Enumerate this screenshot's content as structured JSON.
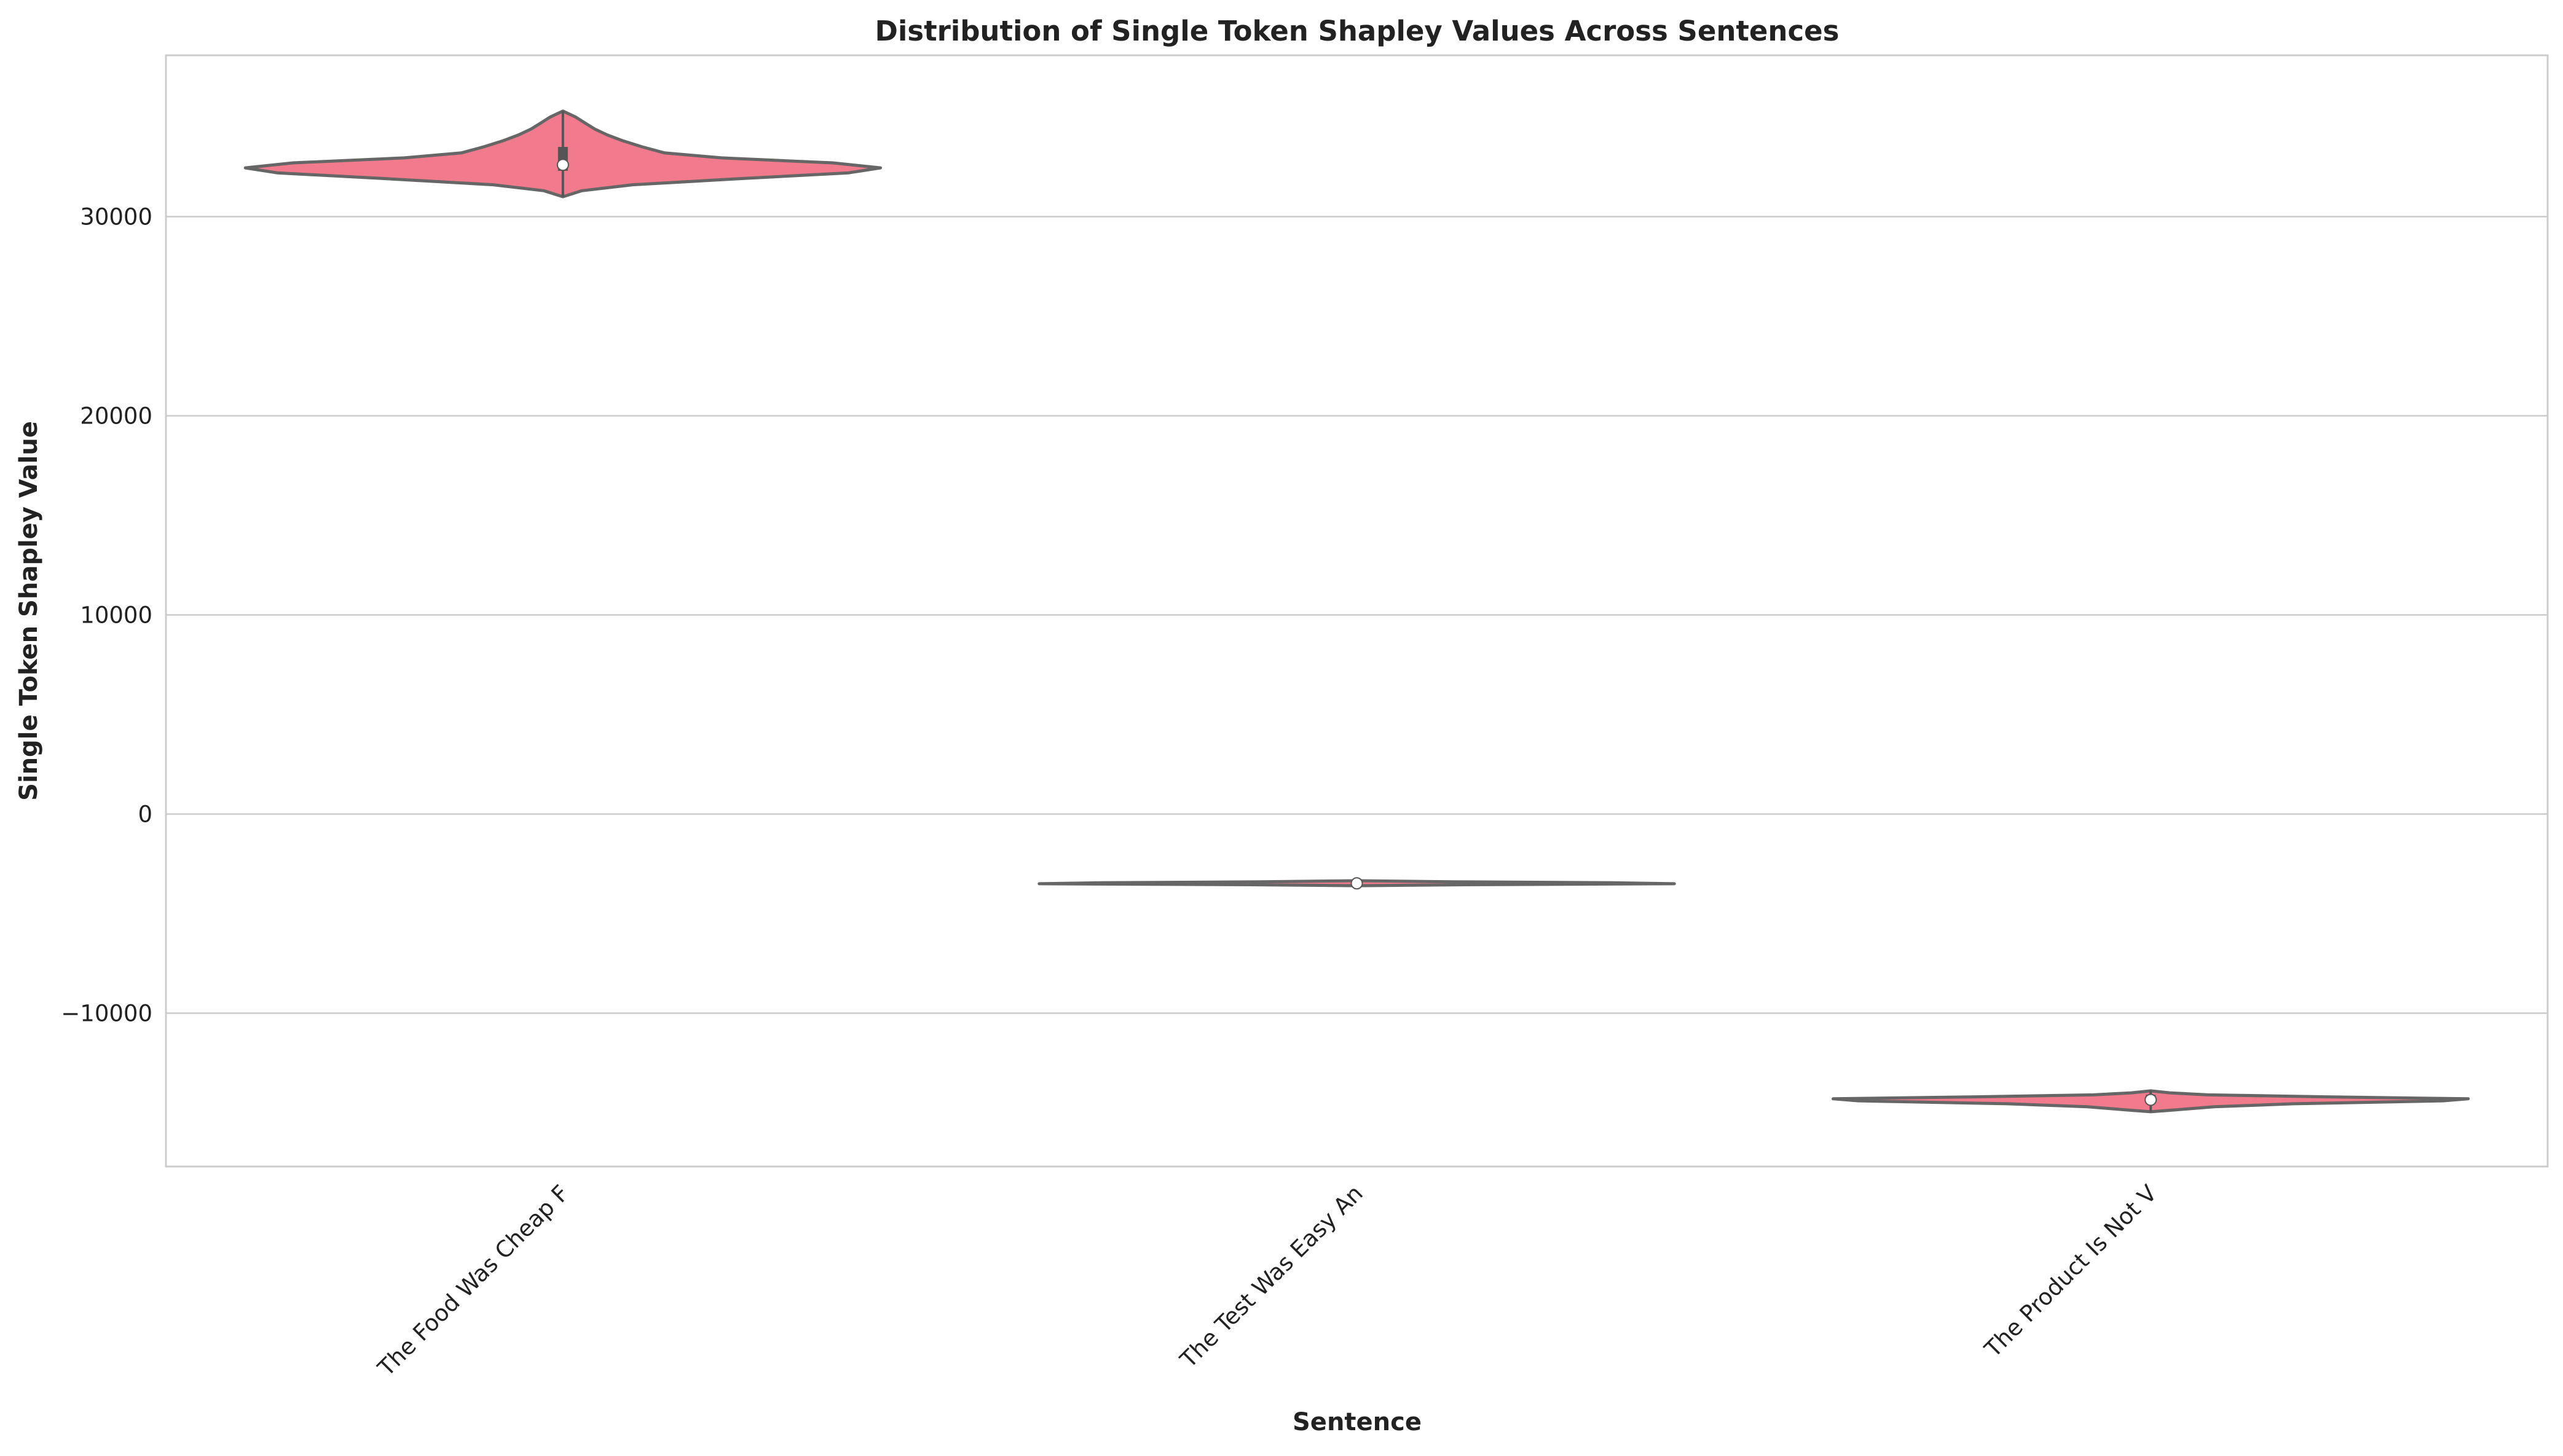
{
  "chart_data": {
    "type": "violin",
    "title": "Distribution of Single Token Shapley Values Across Sentences",
    "xlabel": "Sentence",
    "ylabel": "Single Token Shapley Value",
    "ylim": [
      -17700,
      38100
    ],
    "y_ticks": [
      30000,
      20000,
      10000,
      0,
      -10000
    ],
    "y_tick_labels": [
      "30000",
      "20000",
      "10000",
      "0",
      "−10000"
    ],
    "categories": [
      "The Food Was Cheap F",
      "The Test Was Easy An",
      "The Product Is Not V"
    ],
    "grid": true,
    "colors": {
      "violin_fill": "#f27a8d",
      "violin_edge": "#666666",
      "box": "#555555",
      "median": "#ffffff",
      "grid": "#cccccc",
      "frame": "#cccccc"
    },
    "violins": [
      {
        "category": "The Food Was Cheap F",
        "min": 31000,
        "max": 35300,
        "q1": 32300,
        "median": 32600,
        "q3": 33500,
        "profile": [
          [
            31000,
            0.0
          ],
          [
            31300,
            0.06
          ],
          [
            31600,
            0.22
          ],
          [
            31900,
            0.55
          ],
          [
            32200,
            0.9
          ],
          [
            32450,
            1.0
          ],
          [
            32700,
            0.85
          ],
          [
            32950,
            0.5
          ],
          [
            33200,
            0.32
          ],
          [
            33500,
            0.25
          ],
          [
            33800,
            0.19
          ],
          [
            34100,
            0.14
          ],
          [
            34400,
            0.1
          ],
          [
            34700,
            0.07
          ],
          [
            35000,
            0.04
          ],
          [
            35300,
            0.0
          ]
        ]
      },
      {
        "category": "The Test Was Easy An",
        "min": -3600,
        "max": -3350,
        "q1": -3530,
        "median": -3480,
        "q3": -3420,
        "profile": [
          [
            -3600,
            0.0
          ],
          [
            -3550,
            0.35
          ],
          [
            -3500,
            1.0
          ],
          [
            -3450,
            0.8
          ],
          [
            -3400,
            0.3
          ],
          [
            -3350,
            0.0
          ]
        ]
      },
      {
        "category": "The Product Is Not V",
        "min": -14950,
        "max": -13900,
        "q1": -14550,
        "median": -14350,
        "q3": -14100,
        "profile": [
          [
            -14950,
            0.0
          ],
          [
            -14850,
            0.08
          ],
          [
            -14700,
            0.2
          ],
          [
            -14550,
            0.45
          ],
          [
            -14400,
            0.92
          ],
          [
            -14300,
            1.0
          ],
          [
            -14200,
            0.55
          ],
          [
            -14100,
            0.18
          ],
          [
            -14000,
            0.06
          ],
          [
            -13900,
            0.0
          ]
        ]
      }
    ]
  }
}
